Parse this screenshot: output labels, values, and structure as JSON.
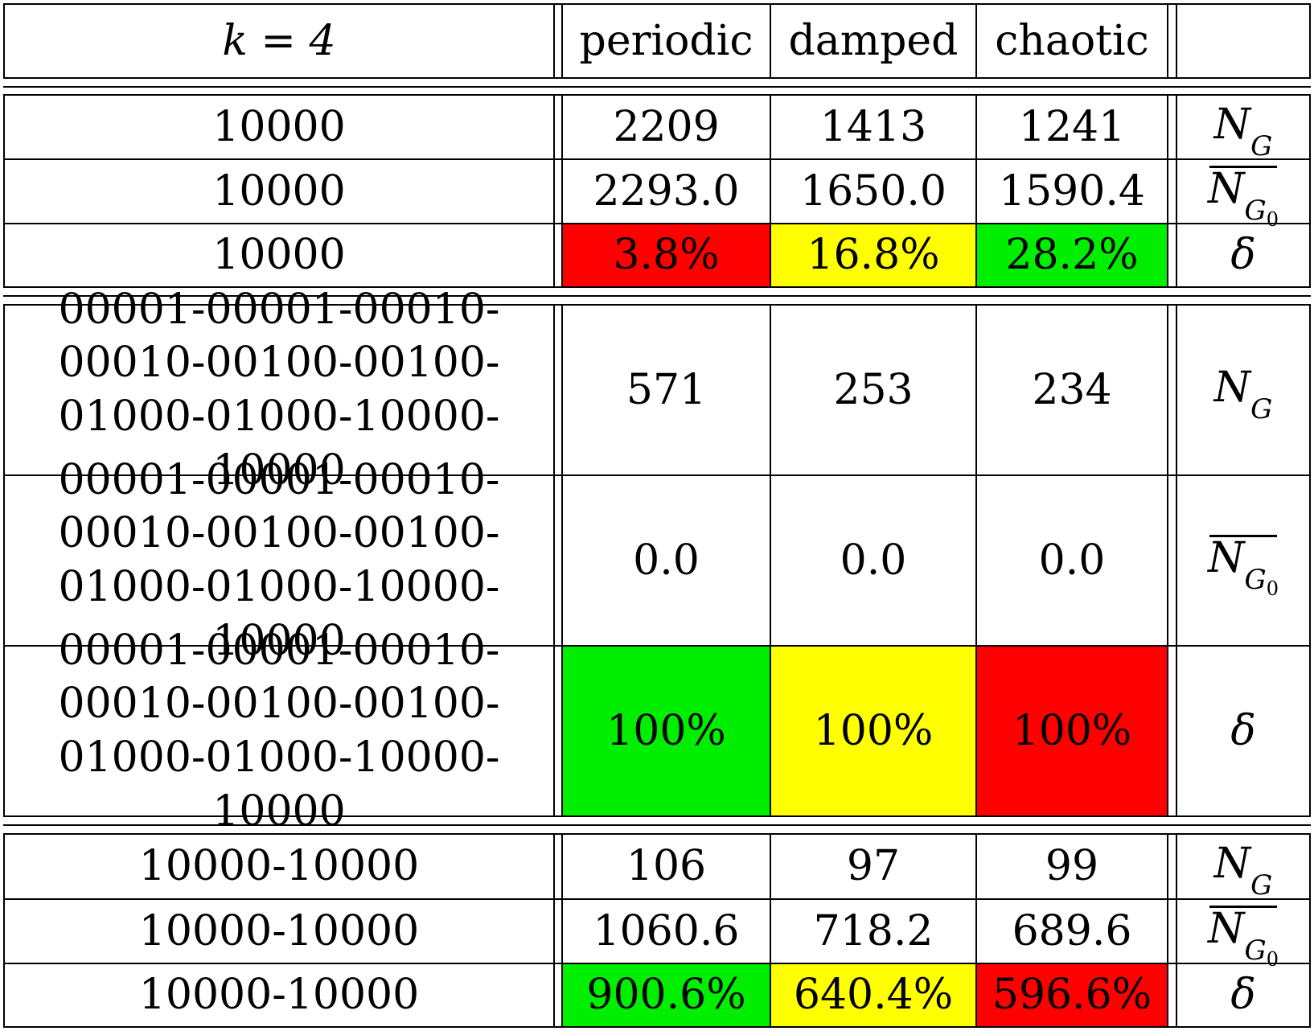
{
  "header": {
    "k_label": "k = 4",
    "columns": [
      "periodic",
      "damped",
      "chaotic"
    ],
    "last": ""
  },
  "colors": {
    "red": "#ff0000",
    "yellow": "#ffff00",
    "green": "#00ee00"
  },
  "row_labels": {
    "ng": "N",
    "ng_sub": "G",
    "nbar": "N",
    "nbar_sub": "G",
    "nbar_sub0": "0",
    "delta": "δ"
  },
  "groups": [
    {
      "rows": [
        {
          "label": "10000",
          "values": [
            "2209",
            "1413",
            "1241"
          ],
          "kind": "N_G"
        },
        {
          "label": "10000",
          "values": [
            "2293.0",
            "1650.0",
            "1590.4"
          ],
          "kind": "N_G0"
        },
        {
          "label": "10000",
          "values": [
            "3.8%",
            "16.8%",
            "28.2%"
          ],
          "kind": "delta",
          "fills": [
            "red",
            "yellow",
            "green"
          ]
        }
      ]
    },
    {
      "rows": [
        {
          "label_lines": [
            "00001-00001-00010-",
            "00010-00100-00100-",
            "01000-01000-10000-10000"
          ],
          "values": [
            "571",
            "253",
            "234"
          ],
          "kind": "N_G"
        },
        {
          "label_lines": [
            "00001-00001-00010-",
            "00010-00100-00100-",
            "01000-01000-10000-10000"
          ],
          "values": [
            "0.0",
            "0.0",
            "0.0"
          ],
          "kind": "N_G0"
        },
        {
          "label_lines": [
            "00001-00001-00010-",
            "00010-00100-00100-",
            "01000-01000-10000-10000"
          ],
          "values": [
            "100%",
            "100%",
            "100%"
          ],
          "kind": "delta",
          "fills": [
            "green",
            "yellow",
            "red"
          ]
        }
      ]
    },
    {
      "rows": [
        {
          "label": "10000-10000",
          "values": [
            "106",
            "97",
            "99"
          ],
          "kind": "N_G"
        },
        {
          "label": "10000-10000",
          "values": [
            "1060.6",
            "718.2",
            "689.6"
          ],
          "kind": "N_G0"
        },
        {
          "label": "10000-10000",
          "values": [
            "900.6%",
            "640.4%",
            "596.6%"
          ],
          "kind": "delta",
          "fills": [
            "green",
            "yellow",
            "red"
          ]
        }
      ]
    }
  ]
}
